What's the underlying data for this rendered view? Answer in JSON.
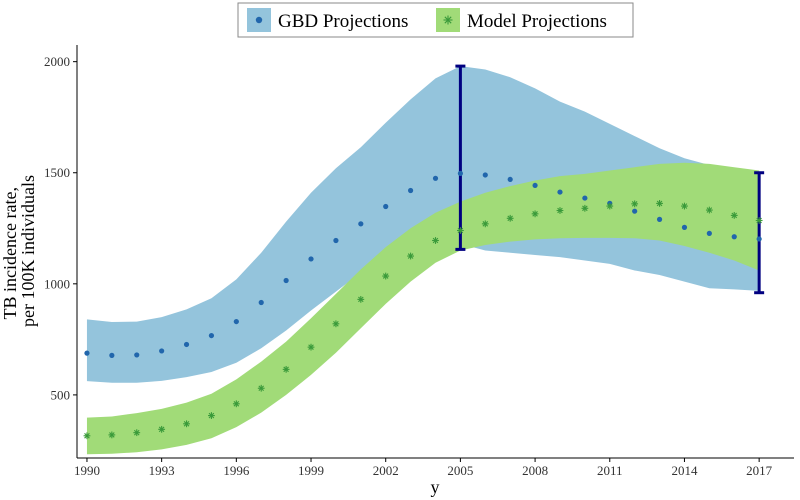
{
  "chart_data": {
    "type": "scatter",
    "title": "",
    "xlabel": "y",
    "ylabel": [
      "TB incidence rate,",
      "per 100K individuals"
    ],
    "xlim": [
      1989.6,
      2018.4
    ],
    "ylim": [
      216,
      2075
    ],
    "x_ticks": [
      1990,
      1993,
      1996,
      1999,
      2002,
      2005,
      2008,
      2011,
      2014,
      2017
    ],
    "y_ticks": [
      500,
      1000,
      1500,
      2000
    ],
    "grid": false,
    "legend_position": "top",
    "x": [
      1990,
      1991,
      1992,
      1993,
      1994,
      1995,
      1996,
      1997,
      1998,
      1999,
      2000,
      2001,
      2002,
      2003,
      2004,
      2005,
      2006,
      2007,
      2008,
      2009,
      2010,
      2011,
      2012,
      2013,
      2014,
      2015,
      2016,
      2017
    ],
    "series": [
      {
        "name": "GBD Projections",
        "marker": "dot",
        "color": "#2166ac",
        "band_color": "#94c4dc",
        "values": [
          688,
          678,
          680,
          698,
          727,
          767,
          830,
          916,
          1015,
          1112,
          1195,
          1270,
          1348,
          1420,
          1475,
          1497,
          1490,
          1470,
          1443,
          1413,
          1386,
          1362,
          1327,
          1290,
          1254,
          1227,
          1212,
          1202
        ],
        "lower": [
          562,
          555,
          555,
          563,
          580,
          603,
          645,
          710,
          790,
          880,
          965,
          1050,
          1140,
          1215,
          1260,
          1180,
          1150,
          1140,
          1130,
          1120,
          1105,
          1090,
          1060,
          1040,
          1010,
          980,
          975,
          968
        ],
        "upper": [
          840,
          828,
          830,
          850,
          885,
          935,
          1020,
          1140,
          1280,
          1410,
          1520,
          1615,
          1725,
          1830,
          1925,
          1980,
          1965,
          1930,
          1880,
          1820,
          1775,
          1720,
          1665,
          1610,
          1565,
          1535,
          1515,
          1510
        ]
      },
      {
        "name": "Model Projections",
        "marker": "asterisk",
        "color": "#3a9a3a",
        "band_color": "#a1db78",
        "values": [
          316,
          320,
          330,
          345,
          370,
          407,
          460,
          530,
          615,
          715,
          820,
          930,
          1035,
          1125,
          1195,
          1240,
          1270,
          1295,
          1315,
          1330,
          1340,
          1350,
          1360,
          1362,
          1350,
          1332,
          1308,
          1285
        ],
        "lower": [
          233,
          235,
          242,
          255,
          275,
          305,
          355,
          420,
          500,
          590,
          690,
          800,
          910,
          1010,
          1095,
          1150,
          1175,
          1190,
          1200,
          1205,
          1207,
          1207,
          1205,
          1195,
          1170,
          1140,
          1105,
          1060
        ],
        "upper": [
          398,
          403,
          418,
          437,
          465,
          505,
          570,
          650,
          740,
          845,
          955,
          1065,
          1165,
          1250,
          1320,
          1370,
          1410,
          1440,
          1465,
          1485,
          1495,
          1510,
          1525,
          1540,
          1545,
          1540,
          1525,
          1510
        ]
      }
    ],
    "error_bars": [
      {
        "x": 2005,
        "low": 1155,
        "high": 1980,
        "color": "#000080"
      },
      {
        "x": 2017,
        "low": 960,
        "high": 1500,
        "color": "#000080"
      }
    ]
  }
}
